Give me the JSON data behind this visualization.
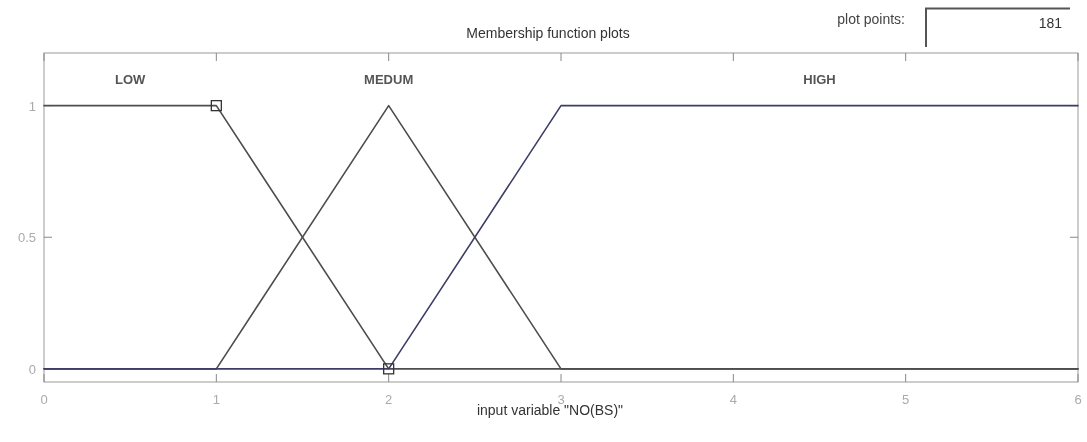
{
  "chart_data": {
    "type": "line",
    "title": "Membership function plots",
    "xlabel": "input variable \"NO(BS)\"",
    "annotations": [
      "plot points:",
      "181"
    ],
    "series": [
      {
        "name": "LOW",
        "color": "#4d4d4d",
        "x": [
          0,
          1,
          2,
          6
        ],
        "values": [
          1,
          1,
          0,
          0
        ]
      },
      {
        "name": "MEDUM",
        "color": "#4d4d4d",
        "x": [
          0,
          1,
          2,
          3,
          6
        ],
        "values": [
          0,
          0,
          1,
          0,
          0
        ]
      },
      {
        "name": "HIGH",
        "color": "#3d3d66",
        "x": [
          0,
          2,
          3,
          6
        ],
        "values": [
          0,
          0,
          1,
          1
        ]
      },
      {
        "type": "scatter",
        "marker": "square",
        "color": "#333333",
        "x": [
          1,
          2
        ],
        "values": [
          1,
          0
        ]
      }
    ],
    "xlim": [
      0,
      6
    ],
    "ylim": [
      -0.05,
      1.2
    ],
    "xticks": [
      0,
      1,
      2,
      3,
      4,
      5,
      6
    ],
    "yticks": [
      0,
      0.5,
      1
    ],
    "grid": false,
    "legend": false,
    "marker": "none",
    "line_style": "solid"
  }
}
